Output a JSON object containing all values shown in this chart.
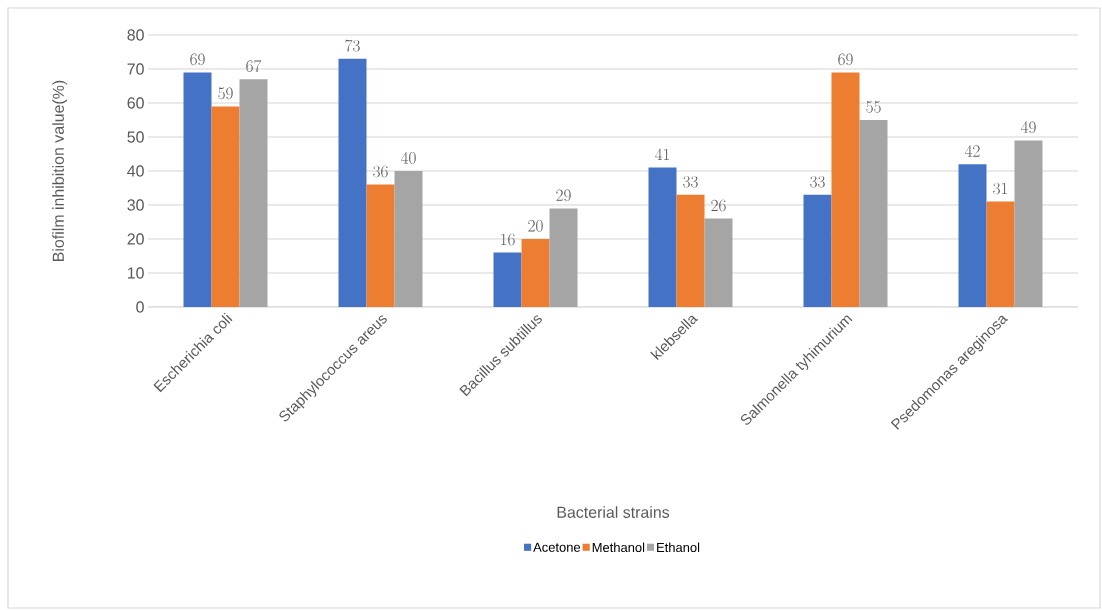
{
  "chart_data": {
    "type": "bar",
    "xlabel": "Bacterial strains",
    "ylabel": "Biofilm inhibition value(%)",
    "categories": [
      "Escherichia coli",
      "Staphylococcus areus",
      "Bacillus subtillus",
      "klebsella",
      "Salmonella tyhimurium",
      "Psedomonas areginosa"
    ],
    "series": [
      {
        "name": "Acetone",
        "color": "#4472c4",
        "values": [
          69,
          73,
          16,
          41,
          33,
          42
        ]
      },
      {
        "name": "Methanol",
        "color": "#ed7d31",
        "values": [
          59,
          36,
          20,
          33,
          69,
          31
        ]
      },
      {
        "name": "Ethanol",
        "color": "#a5a5a5",
        "values": [
          67,
          40,
          29,
          26,
          55,
          49
        ]
      }
    ],
    "ylim": [
      0,
      80
    ],
    "yticks": [
      0,
      10,
      20,
      30,
      40,
      50,
      60,
      70,
      80
    ],
    "grid": "y",
    "legend": "bottom",
    "data_labels": true
  }
}
